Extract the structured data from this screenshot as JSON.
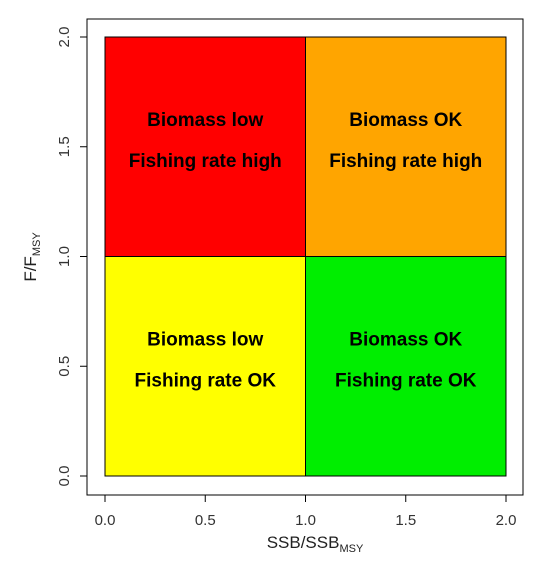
{
  "chart_data": {
    "type": "heatmap",
    "x_range": [
      0,
      2
    ],
    "y_range": [
      0,
      2
    ],
    "x_ticks": [
      0.0,
      0.5,
      1.0,
      1.5,
      2.0
    ],
    "y_ticks": [
      0.0,
      0.5,
      1.0,
      1.5,
      2.0
    ],
    "x_tick_labels": [
      "0.0",
      "0.5",
      "1.0",
      "1.5",
      "2.0"
    ],
    "y_tick_labels": [
      "0.0",
      "0.5",
      "1.0",
      "1.5",
      "2.0"
    ],
    "xlabel": {
      "main": "SSB/SSB",
      "subscript": "MSY"
    },
    "ylabel": {
      "main": "F/F",
      "subscript": "MSY"
    },
    "grid": false,
    "quadrants": [
      {
        "x_range": [
          0,
          1
        ],
        "y_range": [
          1,
          2
        ],
        "color": "#ff0000",
        "line1": "Biomass low",
        "line2": "Fishing rate high"
      },
      {
        "x_range": [
          1,
          2
        ],
        "y_range": [
          1,
          2
        ],
        "color": "#ffa500",
        "line1": "Biomass OK",
        "line2": "Fishing rate high"
      },
      {
        "x_range": [
          0,
          1
        ],
        "y_range": [
          0,
          1
        ],
        "color": "#ffff00",
        "line1": "Biomass low",
        "line2": "Fishing rate OK"
      },
      {
        "x_range": [
          1,
          2
        ],
        "y_range": [
          0,
          1
        ],
        "color": "#00ee00",
        "line1": "Biomass OK",
        "line2": "Fishing rate OK"
      }
    ]
  }
}
